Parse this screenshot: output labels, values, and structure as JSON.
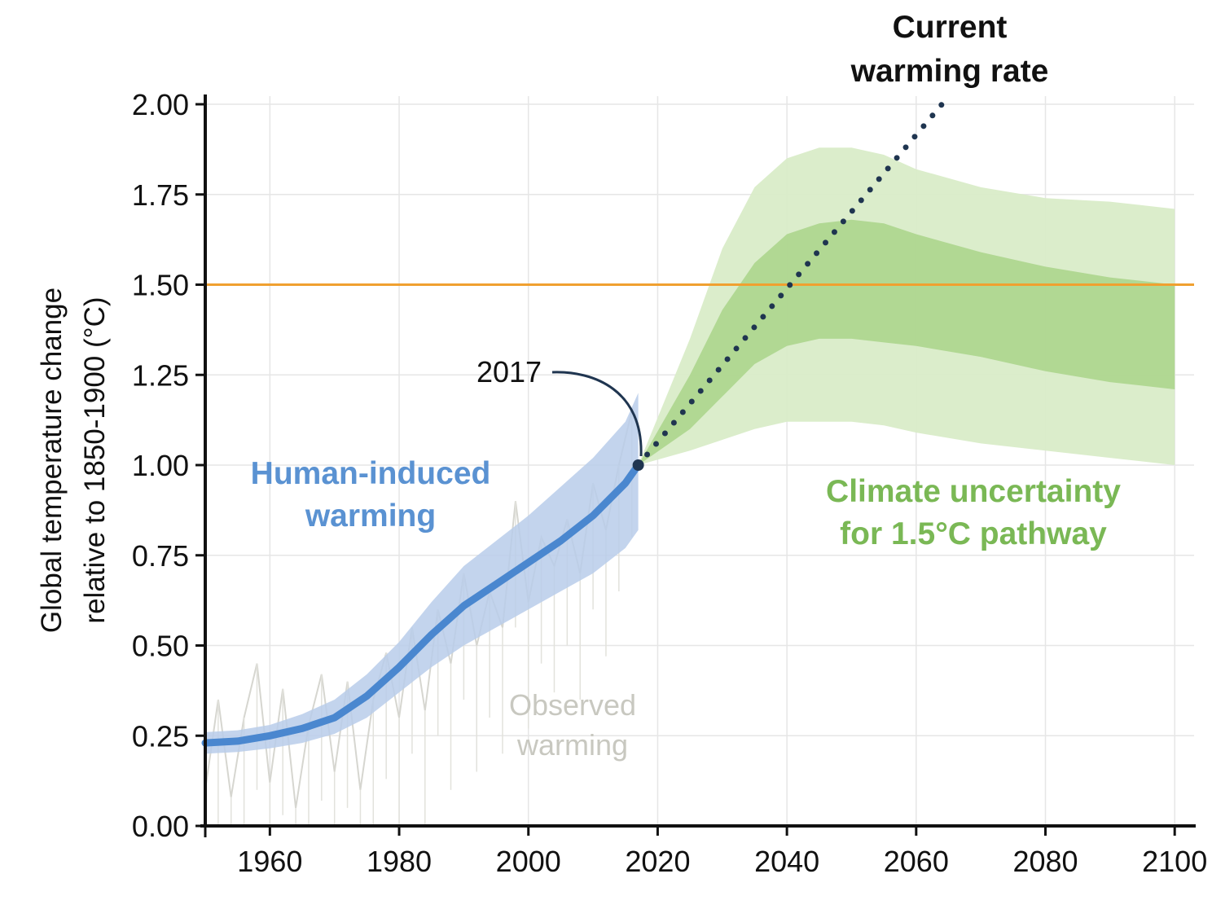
{
  "chart_data": {
    "type": "line",
    "ylabel_lines": [
      "Global temperature change",
      "relative to 1850-1900 (°C)"
    ],
    "x_ticks": [
      "1960",
      "1980",
      "2000",
      "2020",
      "2040",
      "2060",
      "2080",
      "2100"
    ],
    "y_ticks": [
      "0.00",
      "0.25",
      "0.50",
      "0.75",
      "1.00",
      "1.25",
      "1.50",
      "1.75",
      "2.00"
    ],
    "xlim": [
      1950,
      2103
    ],
    "ylim": [
      0,
      2.0
    ],
    "grid": true,
    "threshold": {
      "value": 1.5,
      "label": "1.50",
      "color": "#f0a030"
    },
    "series": [
      {
        "name": "Human-induced warming",
        "label_lines": [
          "Human-induced",
          "warming"
        ],
        "color": "#4a87cf",
        "band_color": "#b8cdea",
        "x": [
          1950,
          1955,
          1960,
          1965,
          1970,
          1975,
          1980,
          1985,
          1990,
          1995,
          2000,
          2005,
          2010,
          2015,
          2017
        ],
        "y": [
          0.23,
          0.235,
          0.25,
          0.27,
          0.3,
          0.36,
          0.44,
          0.53,
          0.61,
          0.67,
          0.73,
          0.79,
          0.86,
          0.95,
          1.0
        ],
        "band_lower": [
          0.2,
          0.205,
          0.215,
          0.23,
          0.255,
          0.3,
          0.37,
          0.44,
          0.5,
          0.55,
          0.6,
          0.65,
          0.7,
          0.77,
          0.82
        ],
        "band_upper": [
          0.26,
          0.265,
          0.28,
          0.31,
          0.35,
          0.42,
          0.51,
          0.62,
          0.72,
          0.79,
          0.86,
          0.94,
          1.02,
          1.12,
          1.2
        ]
      },
      {
        "name": "Observed warming",
        "label_lines": [
          "Observed",
          "warming"
        ],
        "color": "#d6d6d0",
        "x": [
          1950,
          1952,
          1954,
          1956,
          1958,
          1960,
          1962,
          1964,
          1966,
          1968,
          1970,
          1972,
          1974,
          1976,
          1978,
          1980,
          1982,
          1984,
          1986,
          1988,
          1990,
          1992,
          1994,
          1996,
          1998,
          2000,
          2002,
          2004,
          2006,
          2008,
          2010,
          2012,
          2014,
          2016
        ],
        "y": [
          0.1,
          0.35,
          0.08,
          0.3,
          0.45,
          0.12,
          0.38,
          0.05,
          0.28,
          0.42,
          0.15,
          0.4,
          0.1,
          0.35,
          0.48,
          0.3,
          0.55,
          0.32,
          0.6,
          0.45,
          0.7,
          0.5,
          0.65,
          0.55,
          0.9,
          0.62,
          0.8,
          0.72,
          0.85,
          0.7,
          0.95,
          0.82,
          1.0,
          1.15
        ]
      },
      {
        "name": "Current warming rate",
        "label_lines": [
          "Current",
          "warming rate"
        ],
        "color": "#1f3550",
        "x": [
          2017,
          2064
        ],
        "y": [
          1.0,
          2.0
        ]
      },
      {
        "name": "Climate uncertainty for 1.5°C pathway",
        "label_lines": [
          "Climate uncertainty",
          "for 1.5°C pathway"
        ],
        "color": "#7ab855",
        "x": [
          2017,
          2025,
          2030,
          2035,
          2040,
          2045,
          2050,
          2055,
          2060,
          2070,
          2080,
          2090,
          2100
        ],
        "outer_lower": [
          1.0,
          1.04,
          1.07,
          1.1,
          1.12,
          1.12,
          1.12,
          1.11,
          1.09,
          1.06,
          1.04,
          1.02,
          1.0
        ],
        "outer_upper": [
          1.0,
          1.35,
          1.6,
          1.77,
          1.85,
          1.88,
          1.88,
          1.86,
          1.82,
          1.77,
          1.74,
          1.73,
          1.71
        ],
        "inner_lower": [
          1.0,
          1.1,
          1.19,
          1.28,
          1.33,
          1.35,
          1.35,
          1.34,
          1.33,
          1.3,
          1.26,
          1.23,
          1.21
        ],
        "inner_upper": [
          1.0,
          1.25,
          1.43,
          1.56,
          1.64,
          1.67,
          1.68,
          1.67,
          1.64,
          1.59,
          1.55,
          1.52,
          1.5
        ]
      }
    ],
    "annotation": {
      "label": "2017",
      "x": 2017,
      "y": 1.0
    }
  }
}
